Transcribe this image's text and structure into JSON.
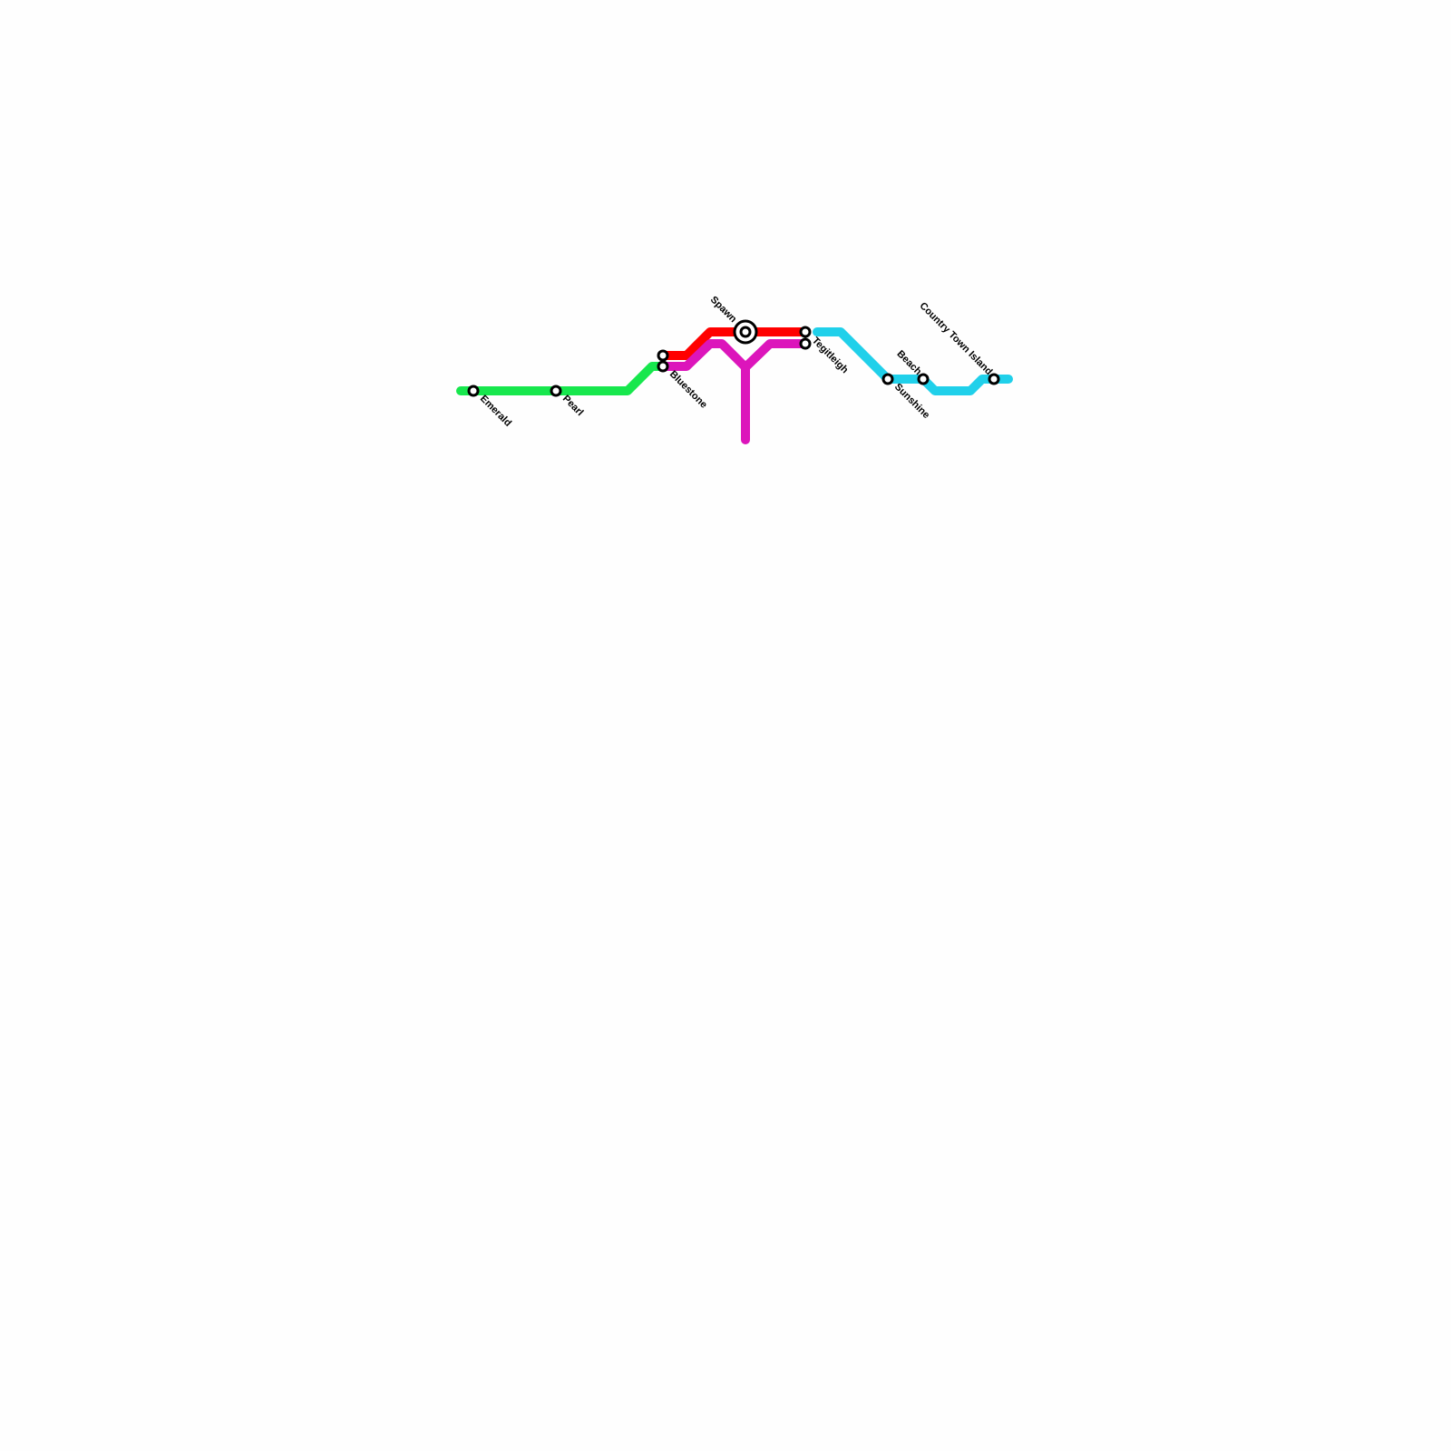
{
  "lines": [
    {
      "id": "green",
      "color": "#17e74d"
    },
    {
      "id": "red",
      "color": "#ff0000"
    },
    {
      "id": "magenta",
      "color": "#dc15bb"
    },
    {
      "id": "cyan",
      "color": "#20d0ea"
    }
  ],
  "stations": {
    "emerald": "Emerald",
    "pearl": "Pearl",
    "bluestone": "Bluestone",
    "spawn": "Spawn",
    "tegitleigh": "Tegitleigh",
    "sunshine": "Sunshine",
    "beach": "Beach",
    "country_town_island": "Country Town Island"
  }
}
